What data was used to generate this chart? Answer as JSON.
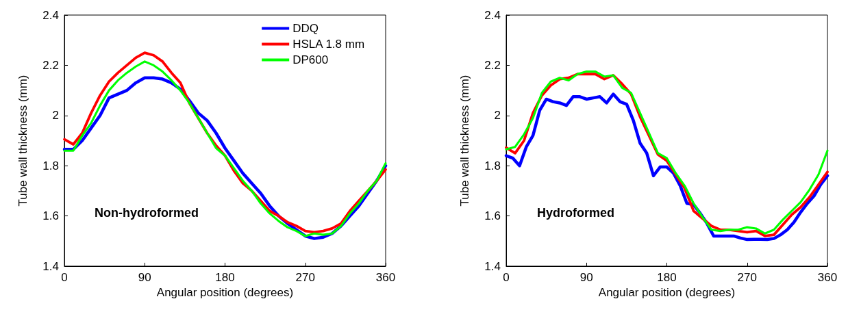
{
  "chart_data": [
    {
      "type": "line",
      "xlabel": "Angular position (degrees)",
      "ylabel": "Tube wall thickness (mm)",
      "annotations": [
        "Non-hydroformed"
      ],
      "x": [
        0,
        10,
        20,
        30,
        40,
        50,
        60,
        70,
        80,
        90,
        100,
        110,
        120,
        130,
        140,
        150,
        160,
        170,
        180,
        190,
        200,
        210,
        220,
        230,
        240,
        250,
        260,
        270,
        280,
        290,
        300,
        310,
        320,
        330,
        340,
        350,
        360
      ],
      "series": [
        {
          "name": "DDQ",
          "color": "#0000ff",
          "values": [
            1.865,
            1.865,
            1.9,
            1.95,
            2.0,
            2.07,
            2.085,
            2.1,
            2.13,
            2.15,
            2.15,
            2.145,
            2.13,
            2.105,
            2.06,
            2.01,
            1.98,
            1.93,
            1.87,
            1.82,
            1.77,
            1.73,
            1.69,
            1.64,
            1.6,
            1.57,
            1.545,
            1.52,
            1.51,
            1.515,
            1.53,
            1.56,
            1.6,
            1.64,
            1.69,
            1.74,
            1.8
          ]
        },
        {
          "name": "HSLA 1.8 mm",
          "color": "#ff0000",
          "values": [
            1.905,
            1.885,
            1.93,
            2.01,
            2.08,
            2.135,
            2.17,
            2.2,
            2.23,
            2.25,
            2.24,
            2.215,
            2.17,
            2.13,
            2.05,
            1.99,
            1.93,
            1.88,
            1.84,
            1.78,
            1.73,
            1.7,
            1.66,
            1.62,
            1.6,
            1.575,
            1.56,
            1.54,
            1.535,
            1.54,
            1.55,
            1.57,
            1.62,
            1.66,
            1.7,
            1.74,
            1.785
          ]
        },
        {
          "name": "DP600",
          "color": "#00ff00",
          "values": [
            1.86,
            1.86,
            1.92,
            1.97,
            2.04,
            2.1,
            2.14,
            2.17,
            2.195,
            2.215,
            2.2,
            2.175,
            2.14,
            2.1,
            2.05,
            1.99,
            1.93,
            1.87,
            1.84,
            1.79,
            1.74,
            1.7,
            1.65,
            1.61,
            1.58,
            1.555,
            1.54,
            1.52,
            1.53,
            1.525,
            1.53,
            1.56,
            1.61,
            1.65,
            1.7,
            1.74,
            1.81
          ]
        }
      ],
      "xlim": [
        0,
        360
      ],
      "xticks": [
        0,
        90,
        180,
        270,
        360
      ],
      "ylim": [
        1.4,
        2.4
      ],
      "yticks": [
        1.4,
        1.6,
        1.8,
        2,
        2.2,
        2.4
      ],
      "legend": "top right",
      "grid": false,
      "marker": "none",
      "line_style": "solid"
    },
    {
      "type": "line",
      "xlabel": "Angular position (degrees)",
      "ylabel": "Tube wall thickness (mm)",
      "annotations": [
        "Hydroformed"
      ],
      "x": [
        0,
        10,
        20,
        30,
        40,
        50,
        60,
        70,
        80,
        90,
        100,
        110,
        120,
        130,
        140,
        150,
        160,
        170,
        180,
        190,
        200,
        210,
        220,
        230,
        240,
        250,
        260,
        270,
        280,
        290,
        300,
        310,
        320,
        330,
        340,
        350,
        360
      ],
      "series": [
        {
          "color": "#0000ff",
          "x": [
            0,
            7.5,
            15,
            22.5,
            30,
            37.5,
            45,
            52.5,
            60,
            67.5,
            75,
            82.5,
            90,
            97.5,
            105,
            112.5,
            120,
            127.5,
            135,
            142.5,
            150,
            157.5,
            165,
            172.5,
            180,
            187.5,
            195,
            202.5,
            210,
            217.5,
            225,
            232.5,
            240,
            247.5,
            255,
            262.5,
            270,
            277.5,
            285,
            292.5,
            300,
            307.5,
            315,
            322.5,
            330,
            337.5,
            345,
            352.5,
            360
          ],
          "values": [
            1.84,
            1.83,
            1.8,
            1.875,
            1.92,
            2.02,
            2.065,
            2.055,
            2.05,
            2.04,
            2.075,
            2.075,
            2.065,
            2.07,
            2.075,
            2.05,
            2.085,
            2.055,
            2.045,
            1.98,
            1.89,
            1.85,
            1.76,
            1.795,
            1.795,
            1.77,
            1.72,
            1.65,
            1.645,
            1.61,
            1.57,
            1.52,
            1.52,
            1.52,
            1.52,
            1.512,
            1.506,
            1.507,
            1.507,
            1.506,
            1.51,
            1.525,
            1.545,
            1.575,
            1.615,
            1.65,
            1.68,
            1.725,
            1.76
          ]
        },
        {
          "color": "#ff0000",
          "values": [
            1.872,
            1.85,
            1.9,
            2.01,
            2.08,
            2.12,
            2.145,
            2.15,
            2.165,
            2.165,
            2.165,
            2.145,
            2.16,
            2.125,
            2.085,
            1.995,
            1.92,
            1.845,
            1.82,
            1.765,
            1.71,
            1.62,
            1.59,
            1.56,
            1.545,
            1.545,
            1.54,
            1.535,
            1.54,
            1.52,
            1.525,
            1.565,
            1.605,
            1.635,
            1.675,
            1.725,
            1.775
          ]
        },
        {
          "color": "#00ff00",
          "values": [
            1.865,
            1.875,
            1.925,
            1.99,
            2.09,
            2.135,
            2.15,
            2.14,
            2.165,
            2.175,
            2.175,
            2.155,
            2.16,
            2.11,
            2.09,
            2.01,
            1.93,
            1.85,
            1.83,
            1.77,
            1.72,
            1.65,
            1.595,
            1.545,
            1.54,
            1.545,
            1.545,
            1.555,
            1.55,
            1.53,
            1.545,
            1.585,
            1.62,
            1.655,
            1.705,
            1.765,
            1.86
          ]
        }
      ],
      "xlim": [
        0,
        360
      ],
      "xticks": [
        0,
        90,
        180,
        270,
        360
      ],
      "ylim": [
        1.4,
        2.4
      ],
      "yticks": [
        1.4,
        1.6,
        1.8,
        2,
        2.2,
        2.4
      ],
      "legend": false,
      "grid": false,
      "marker": "none",
      "line_style": "solid"
    }
  ]
}
